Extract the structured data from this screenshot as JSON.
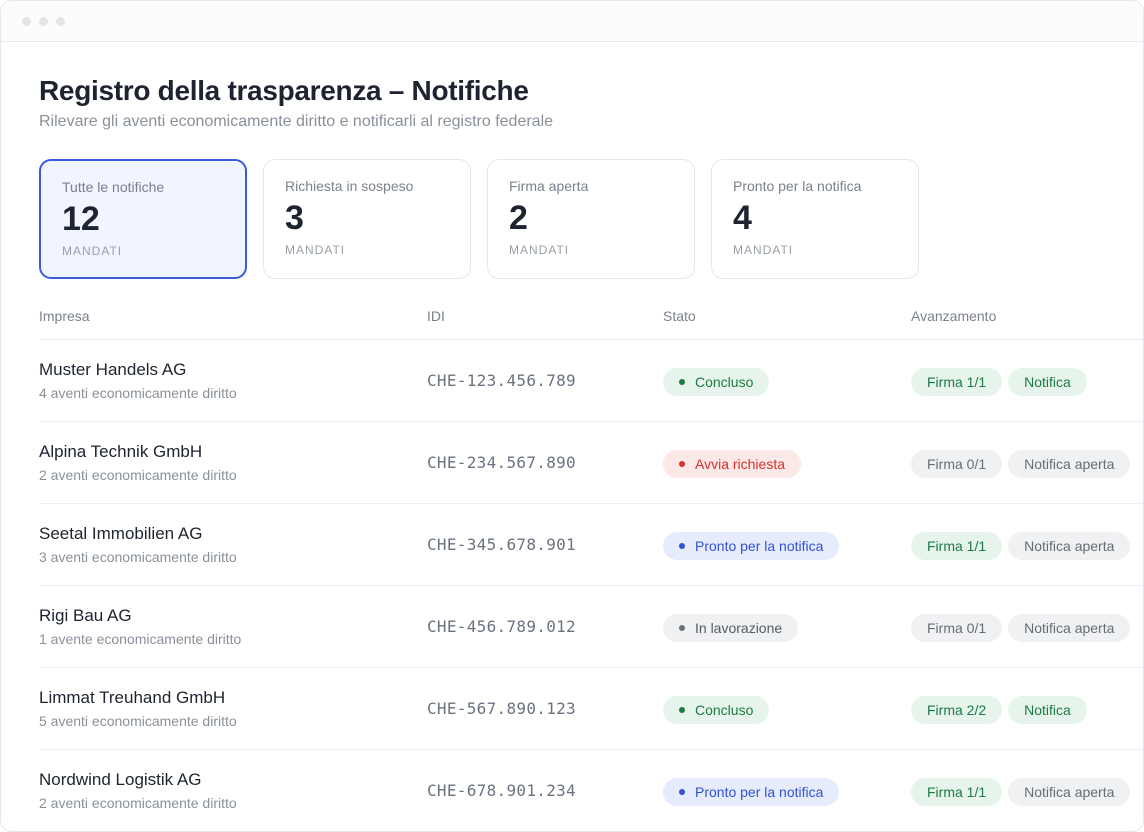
{
  "page": {
    "title": "Registro della trasparenza – Notifiche",
    "subtitle": "Rilevare gli aventi economicamente diritto e notificarli al registro federale"
  },
  "cards": [
    {
      "label": "Tutte le notifiche",
      "count": "12",
      "unit": "MANDATI",
      "active": true
    },
    {
      "label": "Richiesta in sospeso",
      "count": "3",
      "unit": "MANDATI",
      "active": false
    },
    {
      "label": "Firma aperta",
      "count": "2",
      "unit": "MANDATI",
      "active": false
    },
    {
      "label": "Pronto per la notifica",
      "count": "4",
      "unit": "MANDATI",
      "active": false
    }
  ],
  "table": {
    "headers": {
      "company": "Impresa",
      "idi": "IDI",
      "status": "Stato",
      "progress": "Avanzamento"
    },
    "rows": [
      {
        "name": "Muster Handels AG",
        "sub": "4 aventi economicamente diritto",
        "idi": "CHE-123.456.789",
        "status": "Concluso",
        "status_color": "green",
        "sign": "Firma 1/1",
        "sign_color": "green",
        "notify": "Notifica",
        "notify_color": "green"
      },
      {
        "name": "Alpina Technik GmbH",
        "sub": "2 aventi economicamente diritto",
        "idi": "CHE-234.567.890",
        "status": "Avvia richiesta",
        "status_color": "red",
        "sign": "Firma 0/1",
        "sign_color": "gray",
        "notify": "Notifica aperta",
        "notify_color": "gray"
      },
      {
        "name": "Seetal Immobilien AG",
        "sub": "3 aventi economicamente diritto",
        "idi": "CHE-345.678.901",
        "status": "Pronto per la notifica",
        "status_color": "blue",
        "sign": "Firma 1/1",
        "sign_color": "green",
        "notify": "Notifica aperta",
        "notify_color": "gray"
      },
      {
        "name": "Rigi Bau AG",
        "sub": "1 avente economicamente diritto",
        "idi": "CHE-456.789.012",
        "status": "In lavorazione",
        "status_color": "gray",
        "sign": "Firma 0/1",
        "sign_color": "gray",
        "notify": "Notifica aperta",
        "notify_color": "gray"
      },
      {
        "name": "Limmat Treuhand GmbH",
        "sub": "5 aventi economicamente diritto",
        "idi": "CHE-567.890.123",
        "status": "Concluso",
        "status_color": "green",
        "sign": "Firma 2/2",
        "sign_color": "green",
        "notify": "Notifica",
        "notify_color": "green"
      },
      {
        "name": "Nordwind Logistik AG",
        "sub": "2 aventi economicamente diritto",
        "idi": "CHE-678.901.234",
        "status": "Pronto per la notifica",
        "status_color": "blue",
        "sign": "Firma 1/1",
        "sign_color": "green",
        "notify": "Notifica aperta",
        "notify_color": "gray"
      }
    ]
  },
  "colors": {
    "accent": "#3b5bdb",
    "status_green": "#1c7a43",
    "status_red": "#d6322d",
    "status_blue": "#3251d4",
    "status_gray": "#6b7079"
  }
}
